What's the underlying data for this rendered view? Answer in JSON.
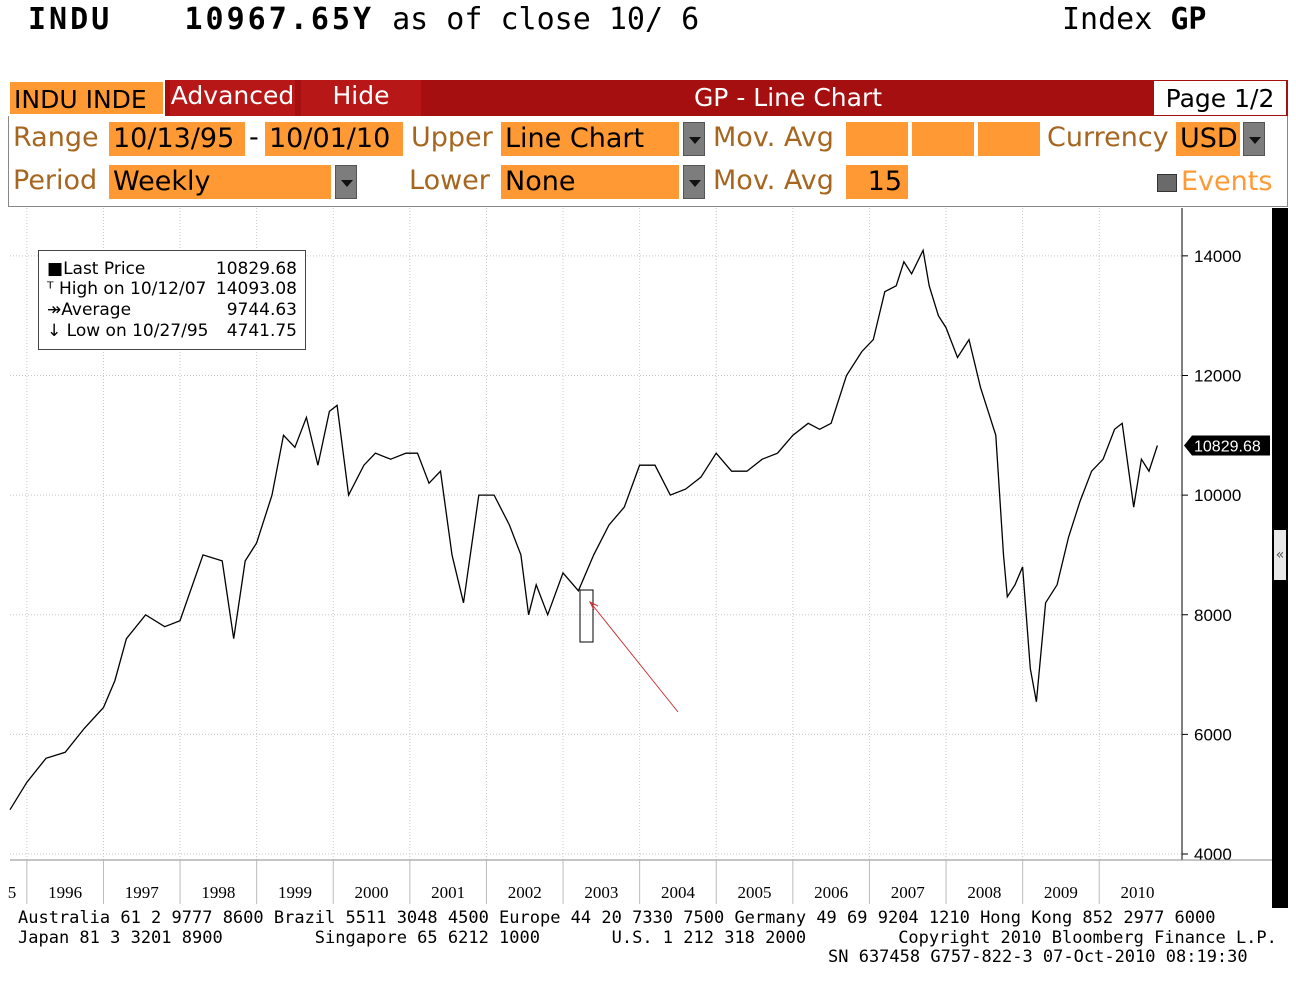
{
  "header": {
    "ticker": "INDU",
    "price": "10967.65Y",
    "as_of": "as of close 10/ 6",
    "type": "Index",
    "function": "GP"
  },
  "toolbar": {
    "ticker_tab": "INDU INDE",
    "advanced_label": "Advanced",
    "hide_label": "Hide",
    "title": "GP - Line Chart",
    "page": "Page 1/2"
  },
  "controls": {
    "range_label": "Range",
    "range_start": "10/13/95",
    "range_sep": "-",
    "range_end": "10/01/10",
    "upper_label": "Upper",
    "upper_value": "Line Chart",
    "movavg_label": "Mov. Avg",
    "currency_label": "Currency",
    "currency_value": "USD",
    "period_label": "Period",
    "period_value": "Weekly",
    "lower_label": "Lower",
    "lower_value": "None",
    "movavg2_label": "Mov. Avg",
    "movavg2_value": "15",
    "events_label": "Events"
  },
  "legend": {
    "last_label": "Last Price",
    "last_value": "10829.68",
    "high_label": "High on 10/12/07",
    "high_value": "14093.08",
    "avg_label": "Average",
    "avg_value": "9744.63",
    "low_label": "Low on 10/27/95",
    "low_value": "4741.75"
  },
  "chart_data": {
    "type": "line",
    "series": [
      {
        "x": [
          1995.78,
          1996.0,
          1996.25,
          1996.5,
          1996.75,
          1997.0,
          1997.15,
          1997.3,
          1997.55,
          1997.8,
          1998.0,
          1998.3,
          1998.55,
          1998.7,
          1998.85,
          1999.0,
          1999.2,
          1999.35,
          1999.5,
          1999.65,
          1999.8,
          1999.95,
          2000.05,
          2000.2,
          2000.4,
          2000.55,
          2000.75,
          2000.95,
          2001.1,
          2001.25,
          2001.4,
          2001.55,
          2001.7,
          2001.9,
          2002.1,
          2002.3,
          2002.45,
          2002.55,
          2002.65,
          2002.8,
          2003.0,
          2003.2,
          2003.4,
          2003.6,
          2003.8,
          2004.0,
          2004.2,
          2004.4,
          2004.6,
          2004.8,
          2005.0,
          2005.2,
          2005.4,
          2005.6,
          2005.8,
          2006.0,
          2006.2,
          2006.35,
          2006.5,
          2006.7,
          2006.9,
          2007.05,
          2007.2,
          2007.35,
          2007.45,
          2007.55,
          2007.7,
          2007.78,
          2007.9,
          2008.0,
          2008.15,
          2008.3,
          2008.45,
          2008.55,
          2008.65,
          2008.75,
          2008.8,
          2008.9,
          2009.0,
          2009.1,
          2009.18,
          2009.3,
          2009.45,
          2009.6,
          2009.75,
          2009.9,
          2010.05,
          2010.2,
          2010.3,
          2010.45,
          2010.55,
          2010.65,
          2010.76
        ],
        "y": [
          4741,
          5200,
          5600,
          5700,
          6100,
          6450,
          6900,
          7600,
          8000,
          7800,
          7900,
          9000,
          8900,
          7600,
          8900,
          9200,
          10000,
          11000,
          10800,
          11300,
          10500,
          11400,
          11500,
          10000,
          10500,
          10700,
          10600,
          10700,
          10700,
          10200,
          10400,
          9000,
          8200,
          10000,
          10000,
          9500,
          9000,
          8000,
          8500,
          8000,
          8700,
          8400,
          9000,
          9500,
          9800,
          10500,
          10500,
          10000,
          10100,
          10300,
          10700,
          10400,
          10400,
          10600,
          10700,
          11000,
          11200,
          11100,
          11200,
          12000,
          12400,
          12600,
          13400,
          13500,
          13900,
          13700,
          14093,
          13500,
          13000,
          12800,
          12300,
          12600,
          11800,
          11400,
          11000,
          9000,
          8300,
          8500,
          8800,
          7100,
          6547,
          8200,
          8500,
          9300,
          9900,
          10400,
          10600,
          11100,
          11200,
          9800,
          10600,
          10400,
          10829.68
        ]
      }
    ],
    "x_ticks": [
      "5",
      "1996",
      "1997",
      "1998",
      "1999",
      "2000",
      "2001",
      "2002",
      "2003",
      "2004",
      "2005",
      "2006",
      "2007",
      "2008",
      "2009",
      "2010"
    ],
    "y_ticks": [
      4000,
      6000,
      8000,
      10000,
      12000,
      14000
    ],
    "ylim": [
      3900,
      14800
    ],
    "last_price_label": "10829.68",
    "grid": true,
    "legend_position": "top-left"
  },
  "footer": {
    "line1": "Australia 61 2 9777 8600 Brazil 5511 3048 4500 Europe 44 20 7330 7500 Germany 49 69 9204 1210 Hong Kong 852 2977 6000",
    "line2": "Japan 81 3 3201 8900         Singapore 65 6212 1000       U.S. 1 212 318 2000         Copyright 2010 Bloomberg Finance L.P.",
    "line3": "SN 637458 G757-822-3 07-Oct-2010 08:19:30"
  },
  "colors": {
    "bar_red": "#a60f0f",
    "field_orange": "#ff9933",
    "label_brown": "#a6661f",
    "annotation_red": "#cc3333"
  },
  "icons": {
    "scroll_icon": "chevron-double-left"
  }
}
